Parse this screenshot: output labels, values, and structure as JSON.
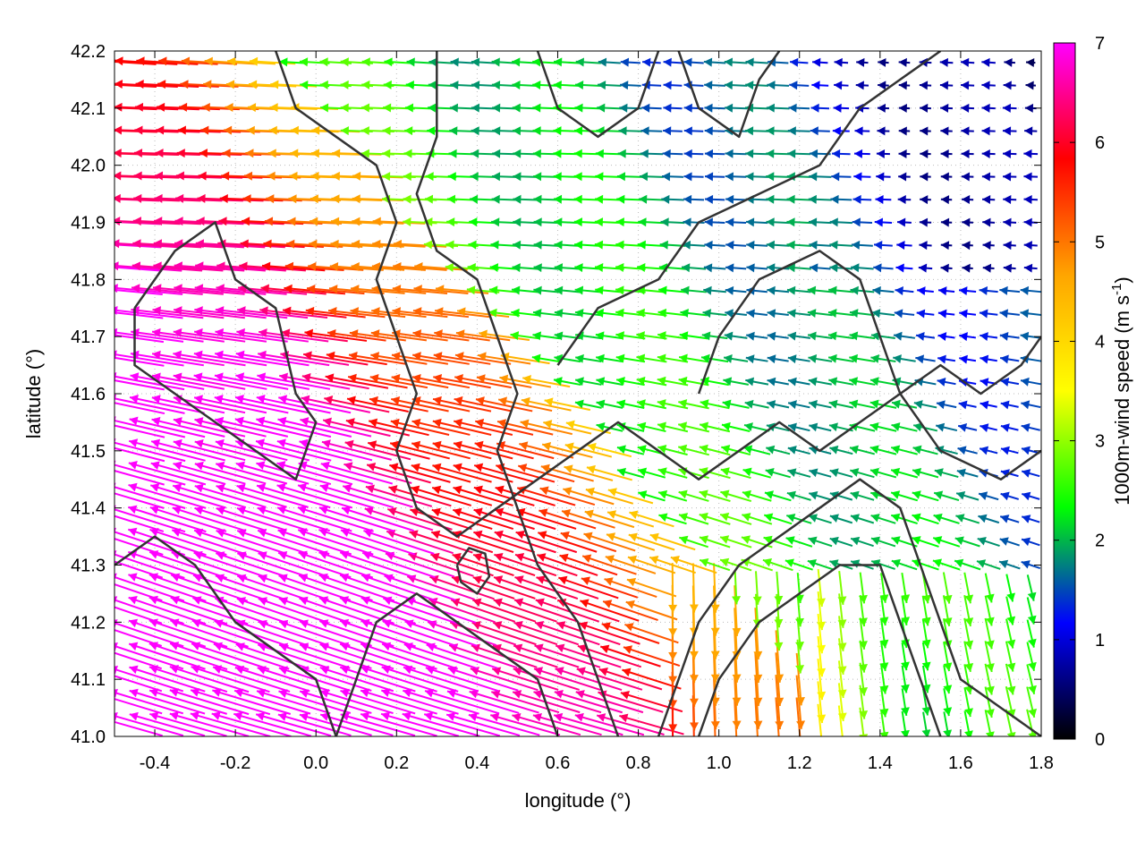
{
  "chart_data": {
    "type": "vector-field",
    "xlabel": "longitude (°)",
    "ylabel": "latitude (°)",
    "xlim": [
      -0.5,
      1.8
    ],
    "ylim": [
      41.0,
      42.2
    ],
    "x_ticks": [
      "-0.4",
      "-0.2",
      "0.0",
      "0.2",
      "0.4",
      "0.6",
      "0.8",
      "1.0",
      "1.2",
      "1.4",
      "1.6",
      "1.8"
    ],
    "x_tick_values": [
      -0.4,
      -0.2,
      0.0,
      0.2,
      0.4,
      0.6,
      0.8,
      1.0,
      1.2,
      1.4,
      1.6,
      1.8
    ],
    "y_ticks": [
      "41.0",
      "41.1",
      "41.2",
      "41.3",
      "41.4",
      "41.5",
      "41.6",
      "41.7",
      "41.8",
      "41.9",
      "42.0",
      "42.1",
      "42.2"
    ],
    "y_tick_values": [
      41.0,
      41.1,
      41.2,
      41.3,
      41.4,
      41.5,
      41.6,
      41.7,
      41.8,
      41.9,
      42.0,
      42.1,
      42.2
    ],
    "colorbar": {
      "label_main": "1000m-wind speed (m s",
      "label_exp": "-1",
      "label_close": ")",
      "min": 0,
      "max": 7,
      "ticks": [
        "0",
        "1",
        "2",
        "3",
        "4",
        "5",
        "6",
        "7"
      ],
      "tick_values": [
        0,
        1,
        2,
        3,
        4,
        5,
        6,
        7
      ],
      "colors": [
        "#000000",
        "#0000ff",
        "#00ff00",
        "#ffff00",
        "#ffa500",
        "#ff0000",
        "#ff00ff"
      ]
    },
    "contour_color": "#333333",
    "grid": true,
    "vectors_description_note": "",
    "contours": [
      [
        [
          -0.45,
          41.75
        ],
        [
          -0.35,
          41.85
        ],
        [
          -0.25,
          41.9
        ],
        [
          -0.2,
          41.8
        ],
        [
          -0.1,
          41.75
        ],
        [
          -0.05,
          41.6
        ],
        [
          0.0,
          41.55
        ],
        [
          -0.05,
          41.45
        ],
        [
          -0.15,
          41.5
        ],
        [
          -0.25,
          41.55
        ],
        [
          -0.35,
          41.6
        ],
        [
          -0.45,
          41.65
        ],
        [
          -0.45,
          41.75
        ]
      ],
      [
        [
          0.3,
          42.2
        ],
        [
          0.3,
          42.05
        ],
        [
          0.25,
          41.95
        ],
        [
          0.3,
          41.85
        ],
        [
          0.4,
          41.8
        ],
        [
          0.45,
          41.7
        ],
        [
          0.5,
          41.6
        ],
        [
          0.45,
          41.5
        ],
        [
          0.5,
          41.4
        ],
        [
          0.55,
          41.3
        ],
        [
          0.65,
          41.2
        ],
        [
          0.7,
          41.1
        ],
        [
          0.75,
          41.0
        ]
      ],
      [
        [
          0.55,
          42.2
        ],
        [
          0.6,
          42.1
        ],
        [
          0.7,
          42.05
        ],
        [
          0.8,
          42.1
        ],
        [
          0.85,
          42.2
        ]
      ],
      [
        [
          0.9,
          42.2
        ],
        [
          0.95,
          42.1
        ],
        [
          1.05,
          42.05
        ],
        [
          1.1,
          42.15
        ],
        [
          1.15,
          42.2
        ]
      ],
      [
        [
          0.95,
          41.6
        ],
        [
          1.0,
          41.7
        ],
        [
          1.1,
          41.8
        ],
        [
          1.25,
          41.85
        ],
        [
          1.35,
          41.8
        ],
        [
          1.4,
          41.7
        ],
        [
          1.45,
          41.6
        ],
        [
          1.55,
          41.5
        ],
        [
          1.7,
          41.45
        ],
        [
          1.8,
          41.5
        ]
      ],
      [
        [
          0.6,
          41.65
        ],
        [
          0.7,
          41.75
        ],
        [
          0.85,
          41.8
        ],
        [
          0.95,
          41.9
        ],
        [
          1.1,
          41.95
        ],
        [
          1.25,
          42.0
        ],
        [
          1.35,
          42.1
        ],
        [
          1.45,
          42.15
        ],
        [
          1.55,
          42.2
        ]
      ],
      [
        [
          0.85,
          41.0
        ],
        [
          0.9,
          41.1
        ],
        [
          0.95,
          41.2
        ],
        [
          1.05,
          41.3
        ],
        [
          1.15,
          41.35
        ],
        [
          1.25,
          41.4
        ],
        [
          1.35,
          41.45
        ],
        [
          1.45,
          41.4
        ],
        [
          1.5,
          41.3
        ],
        [
          1.55,
          41.2
        ],
        [
          1.6,
          41.1
        ],
        [
          1.7,
          41.05
        ],
        [
          1.8,
          41.0
        ]
      ],
      [
        [
          0.95,
          41.0
        ],
        [
          1.0,
          41.1
        ],
        [
          1.1,
          41.2
        ],
        [
          1.2,
          41.25
        ],
        [
          1.3,
          41.3
        ],
        [
          1.4,
          41.3
        ],
        [
          1.45,
          41.2
        ],
        [
          1.5,
          41.1
        ],
        [
          1.55,
          41.0
        ]
      ],
      [
        [
          0.35,
          41.3
        ],
        [
          0.38,
          41.33
        ],
        [
          0.42,
          41.32
        ],
        [
          0.43,
          41.28
        ],
        [
          0.4,
          41.25
        ],
        [
          0.36,
          41.27
        ],
        [
          0.35,
          41.3
        ]
      ],
      [
        [
          0.05,
          41.0
        ],
        [
          0.1,
          41.1
        ],
        [
          0.15,
          41.2
        ],
        [
          0.25,
          41.25
        ],
        [
          0.35,
          41.2
        ],
        [
          0.45,
          41.15
        ],
        [
          0.55,
          41.1
        ],
        [
          0.6,
          41.0
        ]
      ],
      [
        [
          -0.5,
          41.3
        ],
        [
          -0.4,
          41.35
        ],
        [
          -0.3,
          41.3
        ],
        [
          -0.2,
          41.2
        ],
        [
          -0.1,
          41.15
        ],
        [
          0.0,
          41.1
        ],
        [
          0.05,
          41.0
        ]
      ],
      [
        [
          -0.1,
          42.2
        ],
        [
          -0.05,
          42.1
        ],
        [
          0.05,
          42.05
        ],
        [
          0.15,
          42.0
        ],
        [
          0.2,
          41.9
        ],
        [
          0.15,
          41.8
        ],
        [
          0.2,
          41.7
        ],
        [
          0.25,
          41.6
        ],
        [
          0.2,
          41.5
        ],
        [
          0.25,
          41.4
        ],
        [
          0.35,
          41.35
        ],
        [
          0.45,
          41.4
        ],
        [
          0.55,
          41.45
        ],
        [
          0.65,
          41.5
        ],
        [
          0.75,
          41.55
        ],
        [
          0.85,
          41.5
        ],
        [
          0.95,
          41.45
        ],
        [
          1.05,
          41.5
        ],
        [
          1.15,
          41.55
        ],
        [
          1.25,
          41.5
        ],
        [
          1.35,
          41.55
        ],
        [
          1.45,
          41.6
        ],
        [
          1.55,
          41.65
        ],
        [
          1.65,
          41.6
        ],
        [
          1.75,
          41.65
        ],
        [
          1.8,
          41.7
        ]
      ]
    ]
  }
}
